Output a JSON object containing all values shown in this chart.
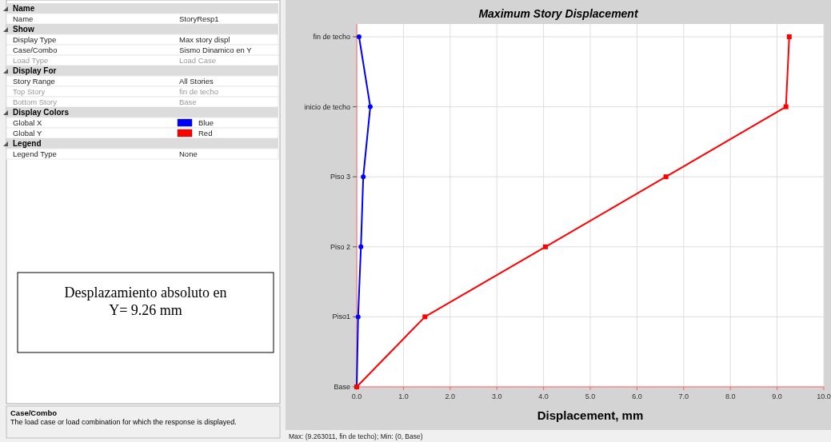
{
  "chart_data": [
    {
      "type": "other",
      "annotations": [
        "Name",
        "Name",
        "StoryResp1",
        "Show",
        "Display Type",
        "Max story displ",
        "Case/Combo",
        "Sismo Dinamico en Y",
        "Load Type",
        "Load Case",
        "Display For",
        "Story Range",
        "All Stories",
        "Top Story",
        "fin de techo",
        "Bottom Story",
        "Base",
        "Display Colors",
        "Global X",
        "Blue",
        "Global Y",
        "Red",
        "Legend",
        "Legend Type",
        "None",
        "Case/Combo",
        "The load case or load combination for which the response is displayed.",
        "Desplazamiento absoluto en Y= 9.26 mm"
      ]
    },
    {
      "type": "line",
      "orientation": "horizontal",
      "title": "Maximum Story Displacement",
      "xlabel": "Displacement, mm",
      "xlim": [
        0,
        10
      ],
      "xticks": [
        {
          "value": 0,
          "label": "0.0"
        },
        {
          "value": 1,
          "label": "1.0"
        },
        {
          "value": 2,
          "label": "2.0"
        },
        {
          "value": 3,
          "label": "3.0"
        },
        {
          "value": 4,
          "label": "4.0"
        },
        {
          "value": 5,
          "label": "5.0"
        },
        {
          "value": 6,
          "label": "6.0"
        },
        {
          "value": 7,
          "label": "7.0"
        },
        {
          "value": 8,
          "label": "8.0"
        },
        {
          "value": 9,
          "label": "9.0"
        },
        {
          "value": 10,
          "label": "10.0"
        }
      ],
      "categories": [
        "fin de techo",
        "inicio de techo",
        "Piso 3",
        "Piso 2",
        "Piso1",
        "Base"
      ],
      "grid": true,
      "annotations": [
        "Max: (9.263011, fin de techo);  Min: (0, Base)"
      ],
      "series": [
        {
          "color": "#0000ff",
          "marker": "circle",
          "values": [
            0.05,
            0.29,
            0.14,
            0.09,
            0.03,
            0
          ]
        },
        {
          "color": "#ff0000",
          "marker": "square",
          "values": [
            9.26,
            9.19,
            6.62,
            4.04,
            1.46,
            0
          ]
        }
      ]
    }
  ]
}
